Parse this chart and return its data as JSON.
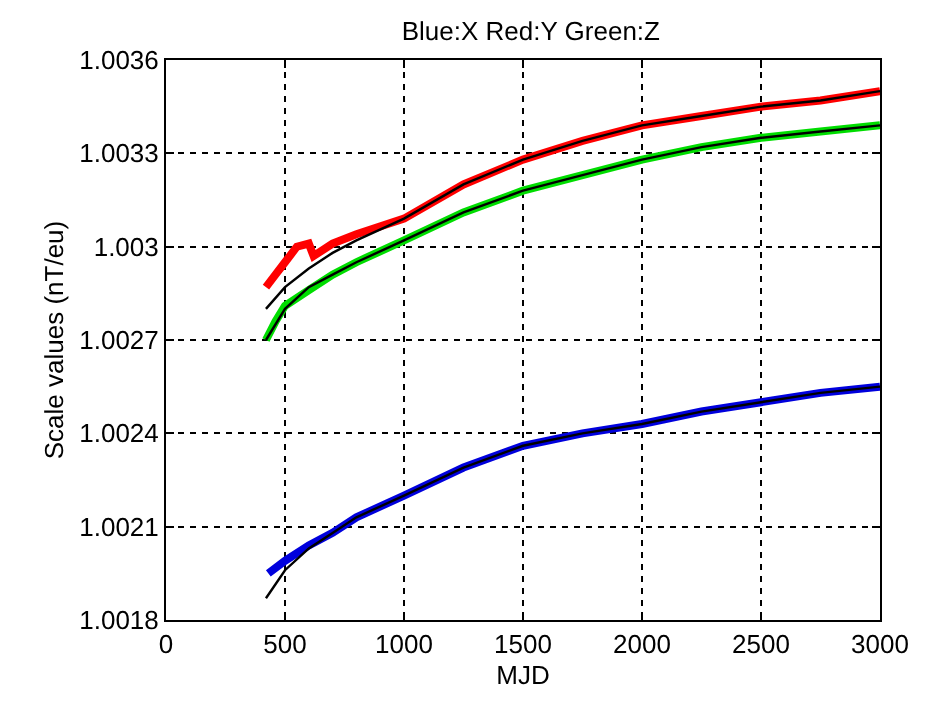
{
  "chart_data": {
    "type": "line",
    "title": "Blue:X Red:Y Green:Z",
    "xlabel": "MJD",
    "ylabel": "Scale values (nT/eu)",
    "xlim": [
      0,
      3000
    ],
    "xticks": [
      0,
      500,
      1000,
      1500,
      2000,
      2500,
      3000
    ],
    "ylim": [
      1.0018,
      1.0036
    ],
    "yticks": [
      1.0018,
      1.0021,
      1.0024,
      1.0027,
      1.003,
      1.0033,
      1.0036
    ],
    "grid": true,
    "line_style": "solid",
    "marker": "none",
    "series": [
      {
        "color": "#ff0000",
        "x": [
          420,
          460,
          500,
          550,
          600,
          620,
          700,
          800,
          1000,
          1250,
          1500,
          1750,
          2000,
          2250,
          2500,
          2750,
          3000
        ],
        "values": [
          1.00287,
          1.00291,
          1.00295,
          1.003,
          1.00301,
          1.00297,
          1.00301,
          1.00304,
          1.00309,
          1.0032,
          1.00328,
          1.00334,
          1.00339,
          1.00342,
          1.00345,
          1.00347,
          1.0035
        ]
      },
      {
        "color": "#00dd00",
        "x": [
          420,
          460,
          500,
          600,
          700,
          800,
          1000,
          1250,
          1500,
          1750,
          2000,
          2250,
          2500,
          2750,
          3000
        ],
        "values": [
          1.0027,
          1.00276,
          1.00281,
          1.00286,
          1.00291,
          1.00295,
          1.00302,
          1.00311,
          1.00318,
          1.00323,
          1.00328,
          1.00332,
          1.00335,
          1.00337,
          1.00339
        ]
      },
      {
        "color": "#0000dd",
        "x": [
          430,
          500,
          600,
          700,
          800,
          1000,
          1250,
          1500,
          1750,
          2000,
          2250,
          2500,
          2750,
          3000
        ],
        "values": [
          1.00195,
          1.00199,
          1.00204,
          1.00208,
          1.00213,
          1.0022,
          1.00229,
          1.00236,
          1.0024,
          1.00243,
          1.00247,
          1.0025,
          1.00253,
          1.00255
        ]
      },
      {
        "color": "#000000",
        "x": [
          420,
          500,
          600,
          700,
          800,
          1000,
          1250,
          1500,
          1750,
          2000,
          2250,
          2500,
          2750,
          3000
        ],
        "values": [
          1.0028,
          1.00287,
          1.00293,
          1.00298,
          1.00302,
          1.00309,
          1.0032,
          1.00328,
          1.00334,
          1.00339,
          1.00342,
          1.00345,
          1.00347,
          1.0035
        ]
      },
      {
        "color": "#000000",
        "x": [
          420,
          500,
          600,
          700,
          800,
          1000,
          1250,
          1500,
          1750,
          2000,
          2250,
          2500,
          2750,
          3000
        ],
        "values": [
          1.0027,
          1.0028,
          1.00287,
          1.00291,
          1.00295,
          1.00302,
          1.00311,
          1.00318,
          1.00323,
          1.00328,
          1.00332,
          1.00335,
          1.00337,
          1.00339
        ]
      },
      {
        "color": "#000000",
        "x": [
          420,
          500,
          600,
          700,
          800,
          1000,
          1250,
          1500,
          1750,
          2000,
          2250,
          2500,
          2750,
          3000
        ],
        "values": [
          1.00187,
          1.00196,
          1.00203,
          1.00208,
          1.00213,
          1.0022,
          1.00229,
          1.00236,
          1.0024,
          1.00243,
          1.00247,
          1.0025,
          1.00253,
          1.00255
        ]
      }
    ]
  }
}
